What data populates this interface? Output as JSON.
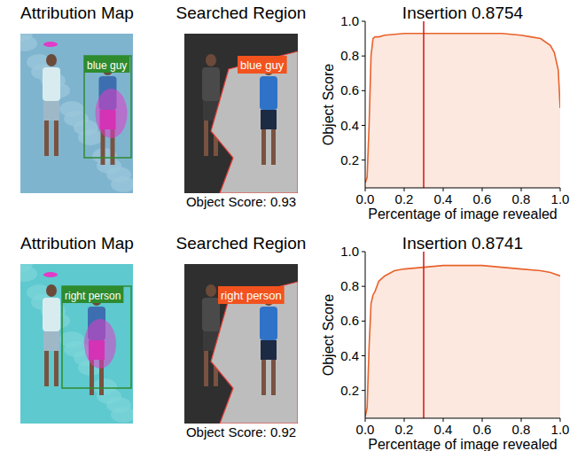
{
  "figure": {
    "rows": [
      {
        "attribution_title": "Attribution Map",
        "searched_title": "Searched Region",
        "label": "blue guy",
        "object_score": "Object Score: 0.93"
      },
      {
        "attribution_title": "Attribution Map",
        "searched_title": "Searched Region",
        "label": "right person",
        "object_score": "Object Score: 0.92"
      }
    ]
  },
  "chart_data": [
    {
      "type": "line",
      "title": "Insertion 0.8754",
      "x_label": "Percentage of image revealed",
      "y_label": "Object Score",
      "x": [
        0,
        0.01,
        0.02,
        0.03,
        0.04,
        0.05,
        0.07,
        0.1,
        0.2,
        0.3,
        0.4,
        0.5,
        0.6,
        0.7,
        0.8,
        0.85,
        0.9,
        0.95,
        0.97,
        0.99,
        1.0
      ],
      "values": [
        0.07,
        0.1,
        0.4,
        0.8,
        0.9,
        0.91,
        0.91,
        0.92,
        0.93,
        0.93,
        0.93,
        0.93,
        0.93,
        0.93,
        0.92,
        0.91,
        0.9,
        0.86,
        0.82,
        0.72,
        0.5
      ],
      "color": "#e8622b",
      "xlim": [
        0,
        1
      ],
      "ylim": [
        0.04,
        1
      ],
      "xticks": [
        {
          "value": 0,
          "label": "0.0"
        },
        0.2,
        0.4,
        0.6,
        0.8,
        {
          "value": 1,
          "label": "1.0"
        }
      ],
      "yticks": [
        0.2,
        0.4,
        0.6,
        0.8,
        {
          "value": 1,
          "label": "1.0"
        }
      ],
      "vline": 0.3
    },
    {
      "type": "line",
      "title": "Insertion 0.8741",
      "x_label": "Percentage of image revealed",
      "y_label": "Object Score",
      "x": [
        0,
        0.01,
        0.02,
        0.03,
        0.04,
        0.05,
        0.07,
        0.1,
        0.15,
        0.2,
        0.3,
        0.4,
        0.5,
        0.6,
        0.7,
        0.8,
        0.9,
        0.95,
        1.0
      ],
      "values": [
        0.05,
        0.1,
        0.45,
        0.7,
        0.75,
        0.77,
        0.83,
        0.86,
        0.89,
        0.9,
        0.91,
        0.92,
        0.92,
        0.92,
        0.91,
        0.9,
        0.89,
        0.88,
        0.86
      ],
      "color": "#e8622b",
      "xlim": [
        0,
        1
      ],
      "ylim": [
        0.04,
        1
      ],
      "xticks": [
        {
          "value": 0,
          "label": "0.0"
        },
        0.2,
        0.4,
        0.6,
        0.8,
        {
          "value": 1,
          "label": "1.0"
        }
      ],
      "yticks": [
        0.2,
        0.4,
        0.6,
        0.8,
        {
          "value": 1,
          "label": "1.0"
        }
      ],
      "vline": 0.3
    }
  ]
}
